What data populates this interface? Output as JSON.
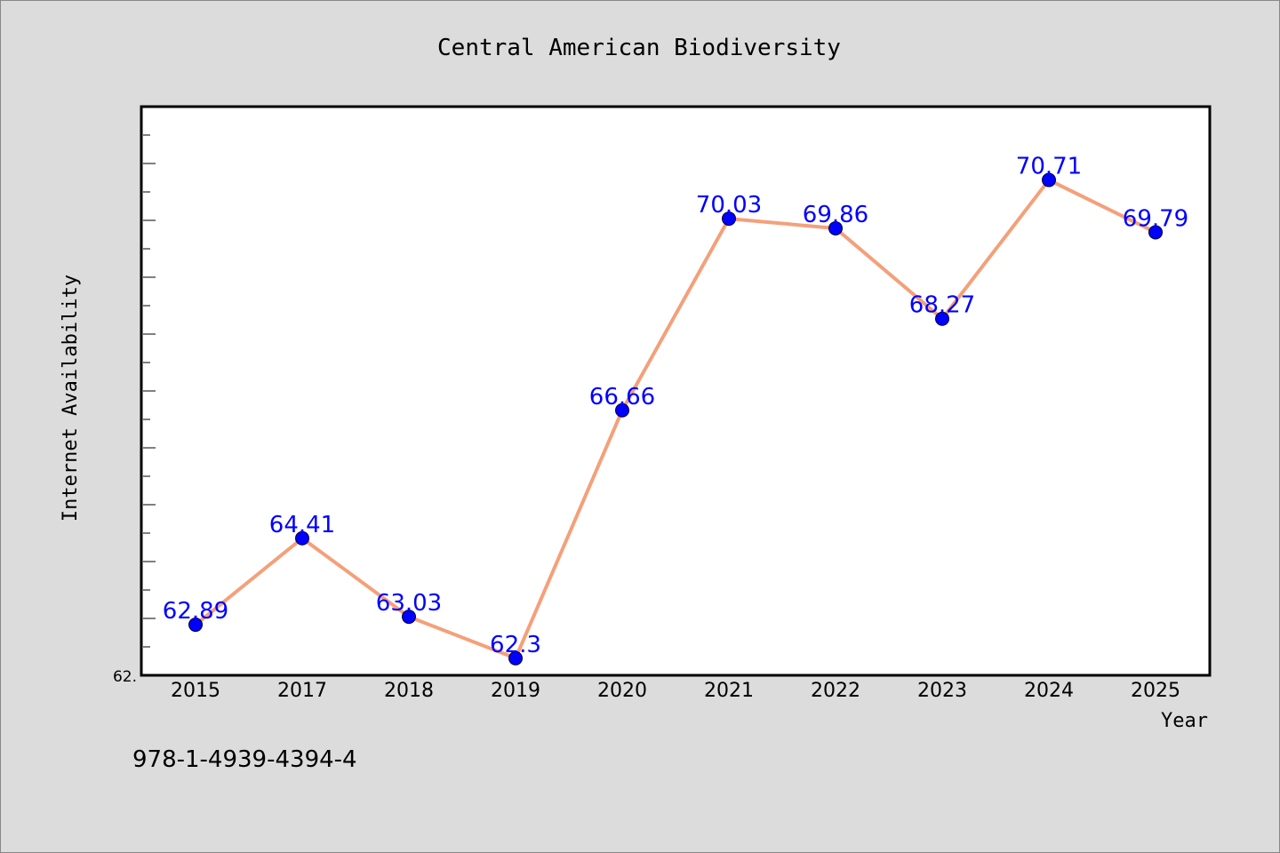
{
  "chart_data": {
    "type": "line",
    "title": "Central American Biodiversity",
    "xlabel": "Year",
    "ylabel": "Internet Availability",
    "categories": [
      "2015",
      "2017",
      "2018",
      "2019",
      "2020",
      "2021",
      "2022",
      "2023",
      "2024",
      "2025"
    ],
    "series": [
      {
        "values": [
          62.89,
          64.41,
          63.03,
          62.3,
          66.66,
          70.03,
          69.86,
          68.27,
          70.71,
          69.79
        ],
        "data_labels": [
          "62.89",
          "64.41",
          "63.03",
          "62.3",
          "66.66",
          "70.03",
          "69.86",
          "68.27",
          "70.71",
          "69.79"
        ]
      }
    ],
    "ylim": [
      62.0,
      72.0
    ],
    "y_tick_label": "62.",
    "grid": false,
    "legend": "none",
    "colors": {
      "line": "#f4a07a",
      "marker": "#0000ff",
      "label": "#0000ff",
      "background": "#dcdcdc",
      "plot_bg": "#ffffff"
    }
  },
  "footer": {
    "isbn": "978-1-4939-4394-4"
  }
}
